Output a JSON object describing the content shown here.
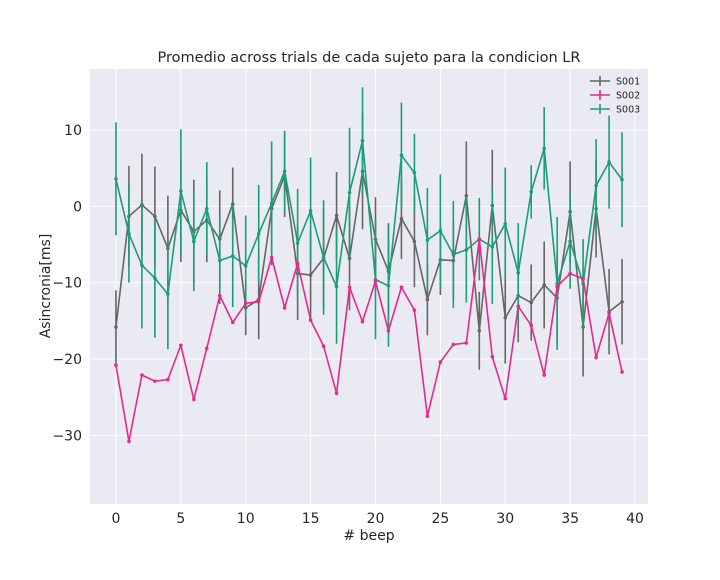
{
  "chart_data": {
    "type": "line",
    "title": "Promedio across trials de cada sujeto para la condicion LR",
    "xlabel": "# beep",
    "ylabel": "Asincronia[ms]",
    "xlim": [
      -2,
      41
    ],
    "ylim": [
      -39,
      18
    ],
    "xticks": [
      0,
      5,
      10,
      15,
      20,
      25,
      30,
      35,
      40
    ],
    "yticks": [
      -30,
      -20,
      -10,
      0,
      10
    ],
    "grid": true,
    "legend_placement": "top-right",
    "x": [
      0,
      1,
      2,
      3,
      4,
      5,
      6,
      7,
      8,
      9,
      10,
      11,
      12,
      13,
      14,
      15,
      16,
      17,
      18,
      19,
      20,
      21,
      22,
      23,
      24,
      25,
      26,
      27,
      28,
      29,
      30,
      31,
      32,
      33,
      34,
      35,
      36,
      37,
      38,
      39
    ],
    "series": [
      {
        "name": "S001",
        "color": "#666666",
        "values": [
          -15.8,
          -1.3,
          0.2,
          -1.3,
          -5.5,
          -0.5,
          -3.3,
          -1.8,
          -4.3,
          0.3,
          -13.3,
          -12.2,
          -0.3,
          4.0,
          -8.8,
          -9.0,
          -6.8,
          -1.2,
          -6.8,
          4.6,
          -4.3,
          -8.5,
          -1.6,
          -4.6,
          -12.2,
          -7.0,
          -7.1,
          1.4,
          -16.3,
          0.1,
          -14.6,
          -11.7,
          -12.6,
          -10.3,
          -12.0,
          -0.7,
          -15.8,
          -0.3,
          -13.8,
          -12.5
        ],
        "errors": [
          4.8,
          6.6,
          6.7,
          6.5,
          6.9,
          6.8,
          6.8,
          5.5,
          6.4,
          4.8,
          3.6,
          5.2,
          6.2,
          5.4,
          6.1,
          5.8,
          6.5,
          5.7,
          6.8,
          7.6,
          5.5,
          6.3,
          5.3,
          6.0,
          4.7,
          4.6,
          5.1,
          7.1,
          5.1,
          7.3,
          6.0,
          6.1,
          5.0,
          5.7,
          5.8,
          6.6,
          6.5,
          6.4,
          5.6,
          5.6
        ]
      },
      {
        "name": "S002",
        "color": "#e7298a",
        "values": [
          -20.8,
          -30.8,
          -22.1,
          -22.9,
          -22.7,
          -18.2,
          -25.3,
          -18.6,
          -11.7,
          -15.2,
          -12.7,
          -12.5,
          -6.7,
          -13.3,
          -7.5,
          -14.9,
          -18.3,
          -24.5,
          -10.6,
          -15.1,
          -9.8,
          -16.3,
          -10.6,
          -13.6,
          -27.5,
          -20.4,
          -18.1,
          -17.9,
          -4.3,
          -19.7,
          -25.2,
          -13.1,
          -15.6,
          -22.1,
          -10.5,
          -8.8,
          -9.5,
          -19.8,
          -14.0,
          -21.7
        ]
      },
      {
        "name": "S003",
        "color": "#1b9e77",
        "values": [
          3.6,
          -3.6,
          -7.7,
          -9.4,
          -11.5,
          2.0,
          -4.6,
          -0.3,
          -7.1,
          -6.5,
          -7.8,
          -3.6,
          0.4,
          4.6,
          -4.8,
          -0.6,
          -6.7,
          -10.5,
          1.8,
          8.6,
          -9.6,
          -10.4,
          6.7,
          4.4,
          -4.4,
          -3.2,
          -6.3,
          -5.7,
          -4.3,
          -5.3,
          -2.3,
          -8.7,
          1.9,
          7.6,
          -10.1,
          -4.6,
          -10.1,
          2.7,
          5.8,
          3.5
        ],
        "errors": [
          7.4,
          6.4,
          8.3,
          7.8,
          7.2,
          8.1,
          6.5,
          6.1,
          5.7,
          6.7,
          6.6,
          6.4,
          8.1,
          5.3,
          7.1,
          7.0,
          7.5,
          7.5,
          8.5,
          7.0,
          7.8,
          8.0,
          6.9,
          5.1,
          6.8,
          7.4,
          7.0,
          6.9,
          5.4,
          7.5,
          7.4,
          6.5,
          3.5,
          5.4,
          8.7,
          6.2,
          5.8,
          6.1,
          6.1,
          6.2
        ]
      }
    ]
  }
}
